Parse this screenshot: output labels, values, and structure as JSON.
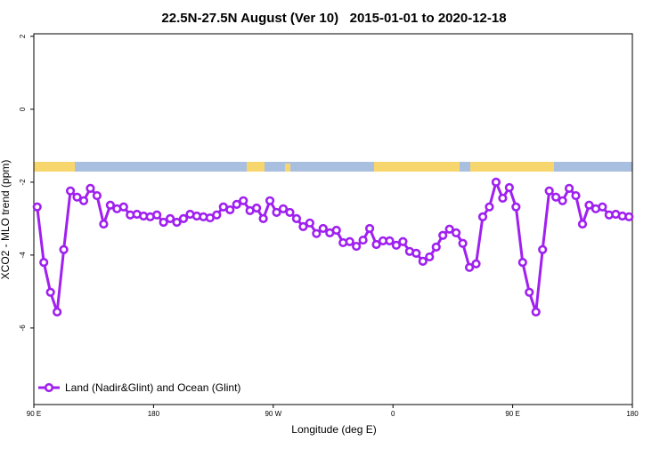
{
  "chart_data": {
    "type": "line",
    "title": "22.5N-27.5N August (Ver 10)   2015-01-01 to 2020-12-18",
    "x_label": "Longitude (deg E)",
    "y_label": "XCO2 - MLO trend (ppm)",
    "xlim": [
      90,
      540
    ],
    "xticks": [
      {
        "value": 90,
        "label": "90 E"
      },
      {
        "value": 180,
        "label": "180"
      },
      {
        "value": 270,
        "label": "90 W"
      },
      {
        "value": 360,
        "label": "0"
      },
      {
        "value": 450,
        "label": "90 E"
      },
      {
        "value": 540,
        "label": "180"
      }
    ],
    "ylim": [
      -8.1,
      2.07
    ],
    "yticks": [
      2,
      0,
      -2,
      -4,
      -6
    ],
    "legend": "bottom-left",
    "x": [
      92.5,
      97.5,
      102.5,
      107.5,
      112.5,
      117.5,
      122.5,
      127.5,
      132.5,
      137.5,
      142.5,
      147.5,
      152.5,
      157.5,
      162.5,
      167.5,
      172.5,
      177.5,
      182.5,
      187.5,
      192.5,
      197.5,
      202.5,
      207.5,
      212.5,
      217.5,
      222.5,
      227.5,
      232.5,
      237.5,
      242.5,
      247.5,
      252.5,
      257.5,
      262.5,
      267.5,
      272.5,
      277.5,
      282.5,
      287.5,
      292.5,
      297.5,
      302.5,
      307.5,
      312.5,
      317.5,
      322.5,
      327.5,
      332.5,
      337.5,
      342.5,
      347.5,
      352.5,
      357.5,
      362.5,
      367.5,
      372.5,
      377.5,
      382.5,
      387.5,
      392.5,
      397.5,
      402.5,
      407.5,
      412.5,
      417.5,
      422.5,
      427.5,
      432.5,
      437.5,
      442.5,
      447.5,
      452.5,
      457.5,
      462.5,
      467.5,
      472.5,
      477.5,
      482.5,
      487.5,
      492.5,
      497.5,
      502.5,
      507.5,
      512.5,
      517.5,
      522.5,
      527.5,
      532.5,
      537.5
    ],
    "series": [
      {
        "name": "Land (Nadir&Glint) and Ocean (Glint)",
        "color": "#a020f0",
        "values": [
          -2.68,
          -4.2,
          -5.02,
          -5.56,
          -3.85,
          -2.24,
          -2.41,
          -2.51,
          -2.17,
          -2.37,
          -3.15,
          -2.63,
          -2.73,
          -2.68,
          -2.9,
          -2.88,
          -2.93,
          -2.95,
          -2.9,
          -3.1,
          -3.0,
          -3.1,
          -3.0,
          -2.88,
          -2.93,
          -2.95,
          -2.98,
          -2.9,
          -2.68,
          -2.76,
          -2.61,
          -2.51,
          -2.78,
          -2.71,
          -3.0,
          -2.51,
          -2.83,
          -2.73,
          -2.83,
          -3.0,
          -3.22,
          -3.12,
          -3.41,
          -3.27,
          -3.39,
          -3.32,
          -3.66,
          -3.63,
          -3.76,
          -3.59,
          -3.27,
          -3.71,
          -3.61,
          -3.61,
          -3.73,
          -3.63,
          -3.9,
          -3.95,
          -4.17,
          -4.05,
          -3.78,
          -3.46,
          -3.29,
          -3.39,
          -3.68,
          -4.34,
          -4.24,
          -2.95,
          -2.68,
          -2.0,
          -2.44,
          -2.15,
          -2.68,
          -4.2,
          -5.02,
          -5.56,
          -3.85,
          -2.24,
          -2.41,
          -2.51,
          -2.17,
          -2.37,
          -3.15,
          -2.63,
          -2.73,
          -2.68,
          -2.9,
          -2.88,
          -2.93,
          -2.95
        ]
      }
    ]
  }
}
